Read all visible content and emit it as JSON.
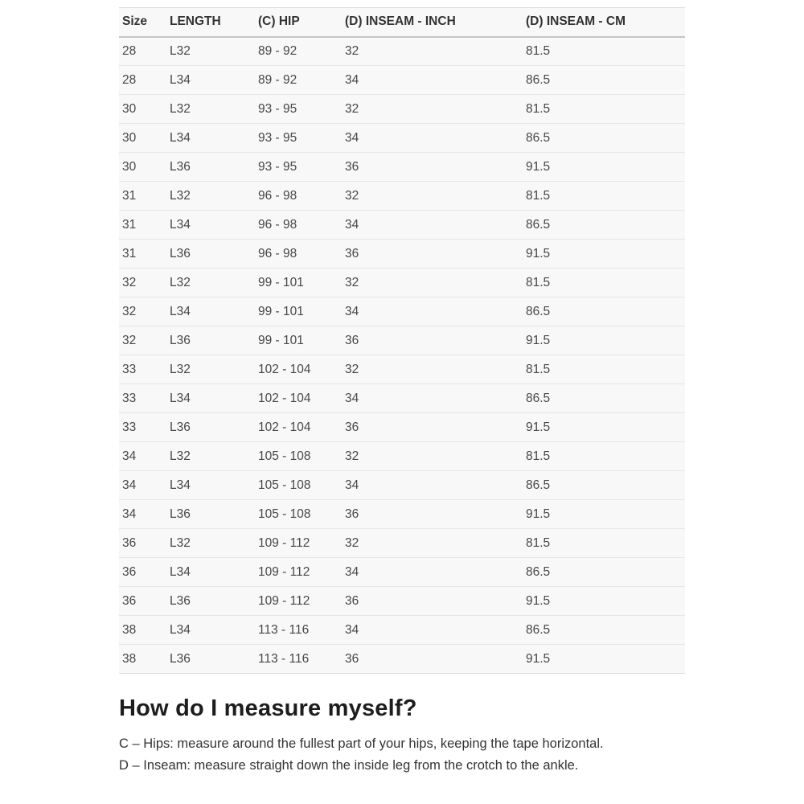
{
  "colors": {
    "page-bg": "#ffffff",
    "table-bg": "#f8f8f8",
    "row-separator": "#e5e5e5",
    "table-border": "#dcdcdc",
    "header-border": "#c6c6c6",
    "header-text": "#333333",
    "cell-text": "#474747",
    "heading-text": "#1d1d1d",
    "body-text": "#333333"
  },
  "table": {
    "columns": [
      {
        "key": "size",
        "label": "Size"
      },
      {
        "key": "length",
        "label": "LENGTH"
      },
      {
        "key": "hip",
        "label": "(C) HIP"
      },
      {
        "key": "inseam-inch",
        "label": "(D) INSEAM - INCH"
      },
      {
        "key": "inseam-cm",
        "label": "(D) INSEAM - CM"
      }
    ],
    "rows": [
      [
        "28",
        "L32",
        "89 - 92",
        "32",
        "81.5"
      ],
      [
        "28",
        "L34",
        "89 - 92",
        "34",
        "86.5"
      ],
      [
        "30",
        "L32",
        "93 - 95",
        "32",
        "81.5"
      ],
      [
        "30",
        "L34",
        "93 - 95",
        "34",
        "86.5"
      ],
      [
        "30",
        "L36",
        "93 - 95",
        "36",
        "91.5"
      ],
      [
        "31",
        "L32",
        "96 - 98",
        "32",
        "81.5"
      ],
      [
        "31",
        "L34",
        "96 - 98",
        "34",
        "86.5"
      ],
      [
        "31",
        "L36",
        "96 - 98",
        "36",
        "91.5"
      ],
      [
        "32",
        "L32",
        "99 - 101",
        "32",
        "81.5"
      ],
      [
        "32",
        "L34",
        "99 - 101",
        "34",
        "86.5"
      ],
      [
        "32",
        "L36",
        "99 - 101",
        "36",
        "91.5"
      ],
      [
        "33",
        "L32",
        "102 - 104",
        "32",
        "81.5"
      ],
      [
        "33",
        "L34",
        "102 - 104",
        "34",
        "86.5"
      ],
      [
        "33",
        "L36",
        "102 - 104",
        "36",
        "91.5"
      ],
      [
        "34",
        "L32",
        "105 - 108",
        "32",
        "81.5"
      ],
      [
        "34",
        "L34",
        "105 - 108",
        "34",
        "86.5"
      ],
      [
        "34",
        "L36",
        "105 - 108",
        "36",
        "91.5"
      ],
      [
        "36",
        "L32",
        "109 - 112",
        "32",
        "81.5"
      ],
      [
        "36",
        "L34",
        "109 - 112",
        "34",
        "86.5"
      ],
      [
        "36",
        "L36",
        "109 - 112",
        "36",
        "91.5"
      ],
      [
        "38",
        "L34",
        "113 - 116",
        "34",
        "86.5"
      ],
      [
        "38",
        "L36",
        "113 - 116",
        "36",
        "91.5"
      ]
    ]
  },
  "section": {
    "heading": "How do I measure myself?",
    "lines": [
      "C – Hips: measure around the fullest part of your hips, keeping the tape horizontal.",
      "D – Inseam: measure straight down the inside leg from the crotch to the ankle."
    ]
  }
}
